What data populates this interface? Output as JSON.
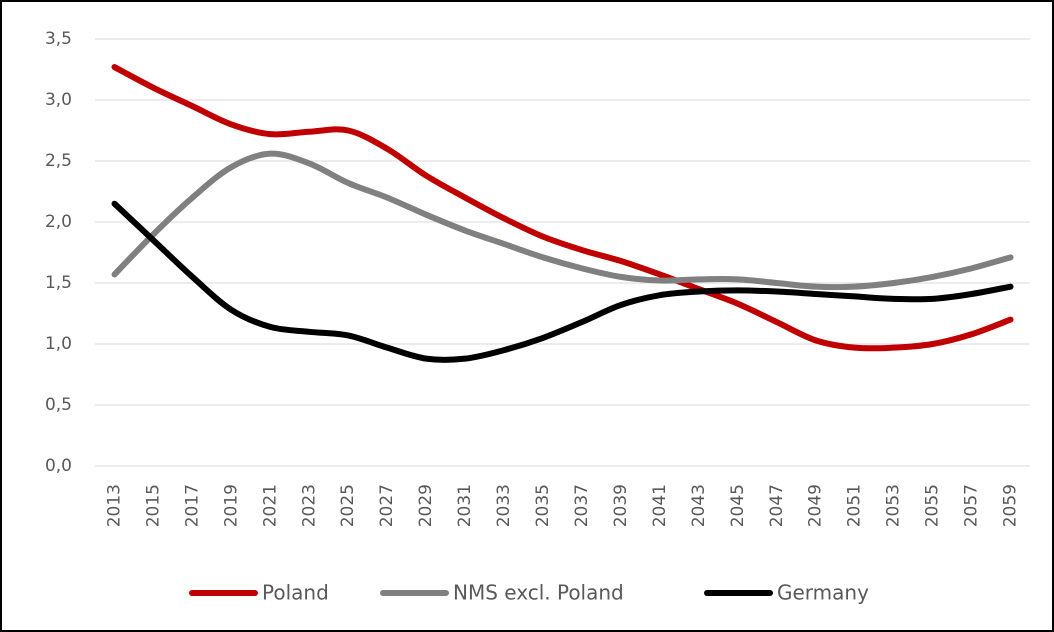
{
  "chart_data": {
    "type": "line",
    "categories": [
      "2013",
      "2015",
      "2017",
      "2019",
      "2021",
      "2023",
      "2025",
      "2027",
      "2029",
      "2031",
      "2033",
      "2035",
      "2037",
      "2039",
      "2041",
      "2043",
      "2045",
      "2047",
      "2049",
      "2051",
      "2053",
      "2055",
      "2057",
      "2059"
    ],
    "series": [
      {
        "name": "Poland",
        "color": "#c00000",
        "values": [
          3.27,
          3.1,
          2.95,
          2.8,
          2.72,
          2.74,
          2.75,
          2.6,
          2.38,
          2.2,
          2.03,
          1.88,
          1.77,
          1.68,
          1.57,
          1.45,
          1.33,
          1.18,
          1.03,
          0.97,
          0.97,
          1.0,
          1.08,
          1.2
        ]
      },
      {
        "name": "NMS excl. Poland",
        "color": "#808080",
        "values": [
          1.57,
          1.9,
          2.2,
          2.45,
          2.56,
          2.48,
          2.32,
          2.2,
          2.06,
          1.93,
          1.82,
          1.71,
          1.62,
          1.55,
          1.52,
          1.53,
          1.53,
          1.5,
          1.47,
          1.47,
          1.5,
          1.55,
          1.62,
          1.71
        ]
      },
      {
        "name": "Germany",
        "color": "#000000",
        "values": [
          2.15,
          1.85,
          1.55,
          1.28,
          1.14,
          1.1,
          1.07,
          0.97,
          0.88,
          0.88,
          0.95,
          1.05,
          1.18,
          1.32,
          1.4,
          1.43,
          1.44,
          1.43,
          1.41,
          1.39,
          1.37,
          1.37,
          1.41,
          1.47
        ]
      }
    ],
    "ylim": [
      0,
      3.5
    ],
    "yticks": [
      {
        "value": 0,
        "label": "0,0"
      },
      {
        "value": 0.5,
        "label": "0,5"
      },
      {
        "value": 1,
        "label": "1,0"
      },
      {
        "value": 1.5,
        "label": "1,5"
      },
      {
        "value": 2,
        "label": "2,0"
      },
      {
        "value": 2.5,
        "label": "2,5"
      },
      {
        "value": 3,
        "label": "3,0"
      },
      {
        "value": 3.5,
        "label": "3,5"
      }
    ],
    "grid": true,
    "legend": "bottom"
  }
}
